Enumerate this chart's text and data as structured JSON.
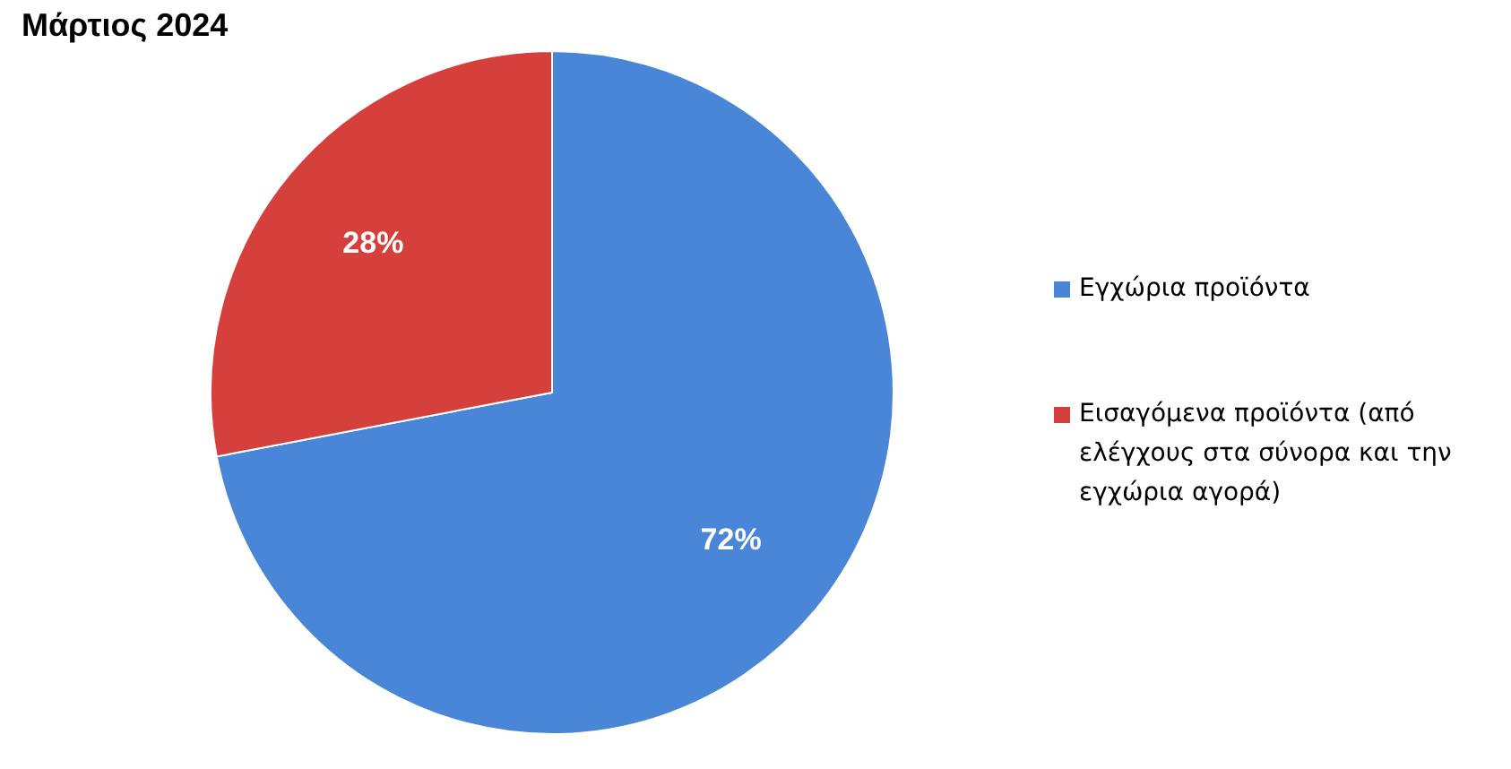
{
  "chart_data": {
    "type": "pie",
    "title": "Μάρτιος 2024",
    "categories": [
      "Εγχώρια προϊόντα",
      "Εισαγόμενα προϊόντα (από ελέγχους στα σύνορα και την εγχώρια αγορά)"
    ],
    "values": [
      72,
      28
    ],
    "colors": [
      "#4a86d8",
      "#d6403c"
    ],
    "value_labels": [
      "72%",
      "28%"
    ],
    "legend": "right"
  }
}
